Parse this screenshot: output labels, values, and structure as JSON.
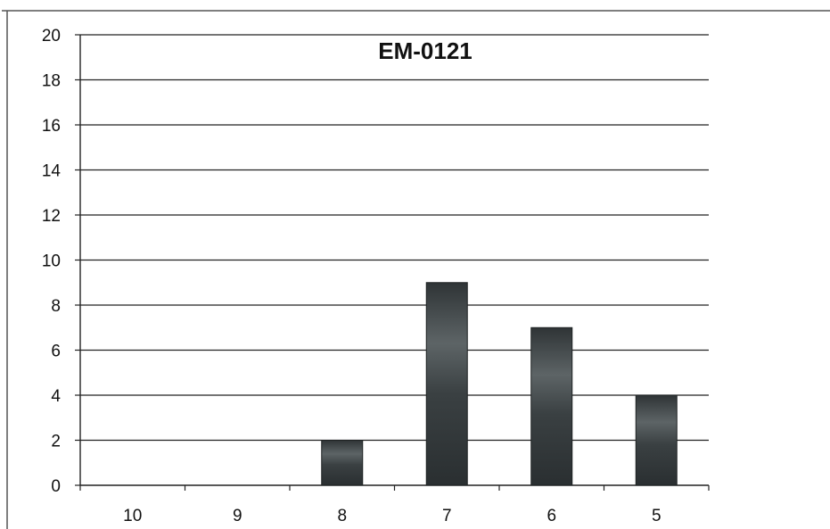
{
  "chart_data": {
    "type": "bar",
    "title": "EM-0121",
    "xlabel": "",
    "ylabel": "",
    "categories": [
      "10",
      "9",
      "8",
      "7",
      "6",
      "5"
    ],
    "values": [
      0,
      0,
      2,
      9,
      7,
      4
    ],
    "ylim": [
      0,
      20
    ],
    "yticks": [
      0,
      2,
      4,
      6,
      8,
      10,
      12,
      14,
      16,
      18,
      20
    ],
    "grid": true,
    "legend": "none",
    "bar_color": "#2f3436",
    "bar_highlight_color": "#6d7476"
  }
}
